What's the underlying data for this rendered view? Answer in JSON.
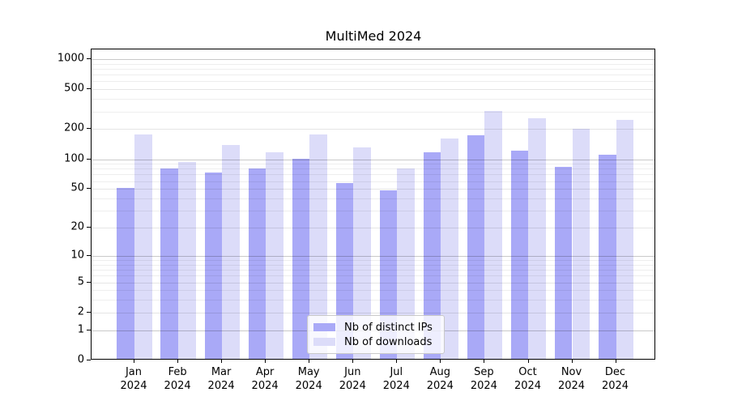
{
  "title": "MultiMed 2024",
  "legend": {
    "items": [
      {
        "label": "Nb of distinct IPs",
        "color": "#a9a9f7"
      },
      {
        "label": "Nb of downloads",
        "color": "#dcdcf9"
      }
    ]
  },
  "chart_data": {
    "type": "bar",
    "title": "MultiMed 2024",
    "categories": [
      "Jan 2024",
      "Feb 2024",
      "Mar 2024",
      "Apr 2024",
      "May 2024",
      "Jun 2024",
      "Jul 2024",
      "Aug 2024",
      "Sep 2024",
      "Oct 2024",
      "Nov 2024",
      "Dec 2024"
    ],
    "series": [
      {
        "name": "Nb of distinct IPs",
        "color": "#a9a9f7",
        "values": [
          49,
          78,
          70,
          78,
          97,
          55,
          47,
          113,
          166,
          118,
          80,
          107
        ]
      },
      {
        "name": "Nb of downloads",
        "color": "#dcdcf9",
        "values": [
          170,
          90,
          134,
          114,
          169,
          126,
          78,
          155,
          293,
          246,
          194,
          237
        ]
      }
    ],
    "xlabel": "",
    "ylabel": "",
    "yscale": "log(1+y)",
    "yticks": [
      0,
      1,
      2,
      5,
      10,
      20,
      50,
      100,
      200,
      500,
      1000
    ],
    "ylim": [
      0,
      1230
    ],
    "grid": "on",
    "grid_major_color": "#c9c9c9",
    "grid_minor_color": "#ededed",
    "legend_position": "lower center"
  }
}
